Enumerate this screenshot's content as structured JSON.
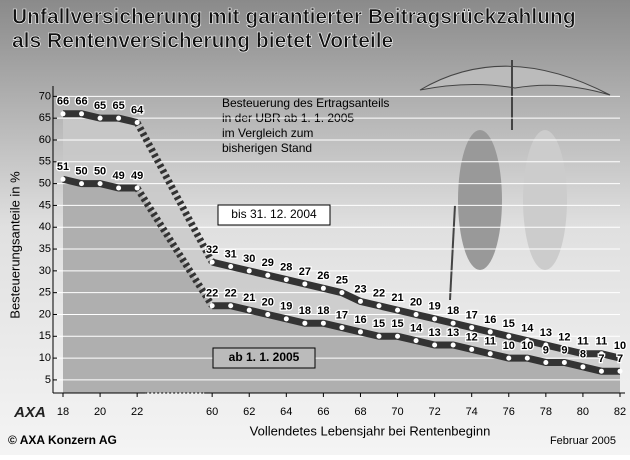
{
  "chart_data": {
    "type": "line",
    "title": [
      "Unfallversicherung mit garantierter Beitragsrückzahlung",
      "als Rentenversicherung bietet Vorteile"
    ],
    "annotation": [
      "Besteuerung des Ertragsanteils",
      "in der UBR ab 1. 1. 2005",
      "im Vergleich zum",
      "bisherigen Stand"
    ],
    "xlabel": "Vollendetes Lebensjahr bei Rentenbeginn",
    "ylabel": "Besteuerungsanteile in %",
    "x": [
      18,
      19,
      20,
      21,
      22,
      60,
      61,
      62,
      63,
      64,
      65,
      66,
      67,
      68,
      69,
      70,
      71,
      72,
      73,
      74,
      75,
      76,
      77,
      78,
      79,
      80,
      81,
      82
    ],
    "series": [
      {
        "name": "bis 31. 12. 2004",
        "color": "#333333",
        "values": [
          66,
          66,
          65,
          65,
          64,
          32,
          31,
          30,
          29,
          28,
          27,
          26,
          25,
          23,
          22,
          21,
          20,
          19,
          18,
          17,
          16,
          15,
          14,
          13,
          12,
          11,
          11,
          10
        ]
      },
      {
        "name": "ab 1. 1. 2005",
        "color": "#333333",
        "values": [
          51,
          50,
          50,
          49,
          49,
          22,
          22,
          21,
          20,
          19,
          18,
          18,
          17,
          16,
          15,
          15,
          14,
          13,
          13,
          12,
          11,
          10,
          10,
          9,
          9,
          8,
          7,
          7
        ]
      }
    ],
    "xlim": [
      18,
      82
    ],
    "xticks": [
      18,
      20,
      22,
      60,
      62,
      64,
      66,
      68,
      70,
      72,
      74,
      76,
      78,
      80,
      82
    ],
    "ylim": [
      2,
      71
    ],
    "yticks": [
      5,
      10,
      15,
      20,
      25,
      30,
      35,
      40,
      45,
      50,
      55,
      60,
      65,
      70
    ],
    "grid": true,
    "source": "© AXA Konzern AG",
    "logo": "AXA",
    "date": "Februar 2005"
  }
}
